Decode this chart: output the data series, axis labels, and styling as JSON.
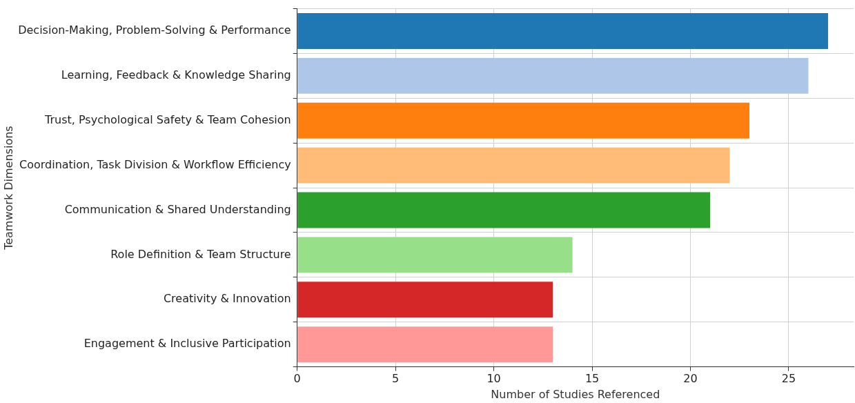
{
  "chart_data": {
    "type": "bar",
    "orientation": "horizontal",
    "xlabel": "Number of Studies Referenced",
    "ylabel": "Teamwork Dimensions",
    "categories": [
      "Decision-Making, Problem-Solving & Performance",
      "Learning, Feedback & Knowledge Sharing",
      "Trust, Psychological Safety & Team Cohesion",
      "Coordination, Task Division & Workflow Efficiency",
      "Communication & Shared Understanding",
      "Role Definition & Team Structure",
      "Creativity & Innovation",
      "Engagement & Inclusive Participation"
    ],
    "values": [
      27,
      26,
      23,
      22,
      21,
      14,
      13,
      13
    ],
    "colors": [
      "#1f77b4",
      "#aec7e8",
      "#ff7f0e",
      "#ffbb78",
      "#2ca02c",
      "#98df8a",
      "#d62728",
      "#ff9896"
    ],
    "xlim": [
      0,
      28.3
    ],
    "xticks": [
      0,
      5,
      10,
      15,
      20,
      25
    ],
    "grid": true,
    "legend": false
  }
}
